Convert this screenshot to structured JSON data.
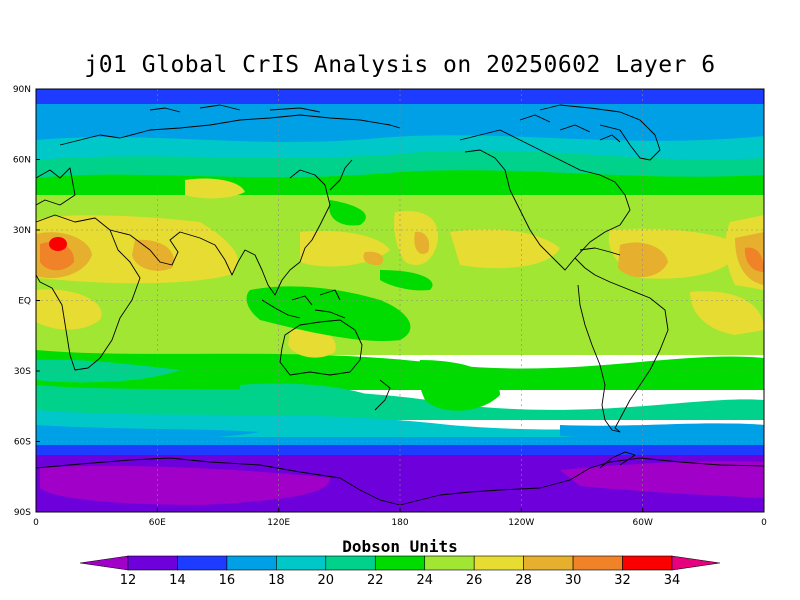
{
  "title": "j01 Global CrIS Analysis on 20250602 Layer 6",
  "colorbar": {
    "title": "Dobson Units",
    "levels": [
      12,
      14,
      16,
      18,
      20,
      22,
      24,
      26,
      28,
      30,
      32,
      34
    ],
    "colors": [
      "#a000c8",
      "#6e00dc",
      "#1e3cff",
      "#00a0e6",
      "#00c8c8",
      "#00d28c",
      "#00dc00",
      "#a0e632",
      "#e6dc32",
      "#e6af2d",
      "#f08228",
      "#fa0000",
      "#e6007d"
    ]
  },
  "axes": {
    "x_ticks": [
      "0",
      "60E",
      "120E",
      "180",
      "120W",
      "60W",
      "0"
    ],
    "y_ticks": [
      "90N",
      "60N",
      "30N",
      "EQ",
      "30S",
      "60S",
      "90S"
    ]
  },
  "chart_data": {
    "type": "heatmap",
    "title": "j01 Global CrIS Analysis on 20250602 Layer 6",
    "variable_label": "Dobson Units",
    "x_ticks": [
      "0",
      "60E",
      "120E",
      "180",
      "120W",
      "60W",
      "0"
    ],
    "y_ticks": [
      "90N",
      "60N",
      "30N",
      "EQ",
      "30S",
      "60S",
      "90S"
    ],
    "value_range": [
      12,
      34
    ]
  }
}
